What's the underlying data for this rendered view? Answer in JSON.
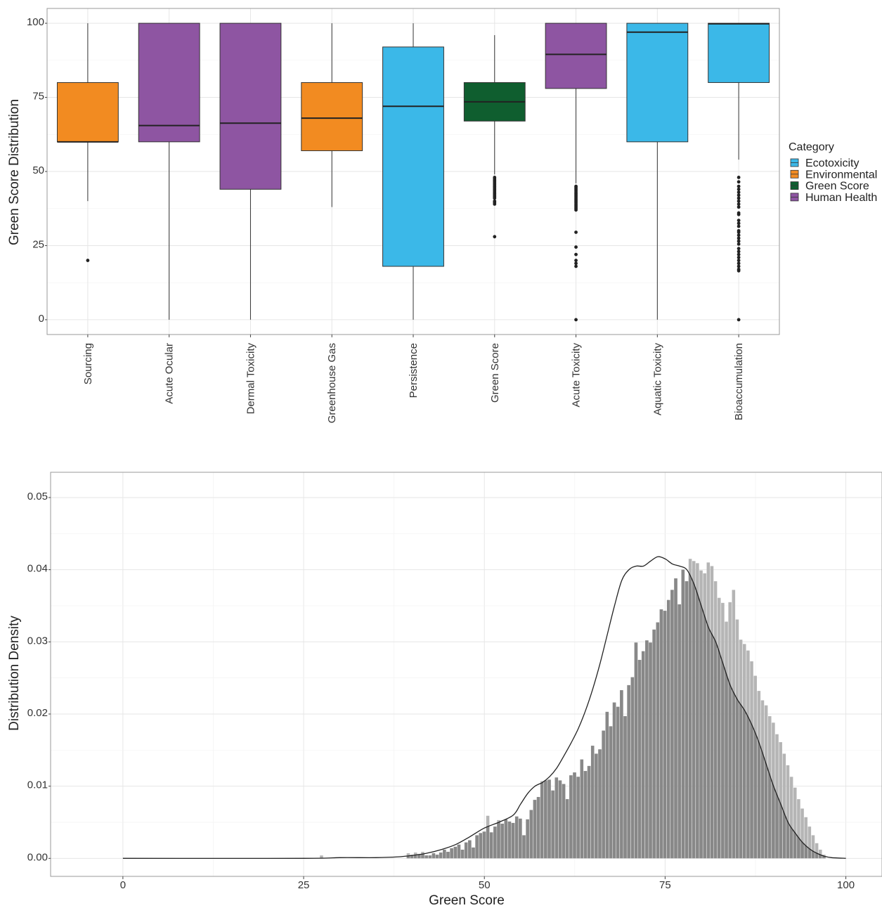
{
  "chart_data": [
    {
      "type": "boxplot",
      "ylabel": "Green Score Distribution",
      "xlabel": "",
      "ylim": [
        -5,
        105
      ],
      "y_ticks": [
        "0",
        "25",
        "50",
        "75",
        "100"
      ],
      "grid": true,
      "legend": {
        "title": "Category",
        "placement": "right",
        "entries": [
          {
            "label": "Ecotoxicity",
            "color": "#3BB8E8"
          },
          {
            "label": "Environmental",
            "color": "#F28B21"
          },
          {
            "label": "Green Score",
            "color": "#0F5E2F"
          },
          {
            "label": "Human Health",
            "color": "#8E55A2"
          }
        ]
      },
      "categories": [
        "Sourcing",
        "Acute Ocular",
        "Dermal Toxicity",
        "Greenhouse Gas",
        "Persistence",
        "Green Score",
        "Acute Toxicity",
        "Aquatic Toxicity",
        "Bioaccumulation"
      ],
      "boxes": [
        {
          "label": "Sourcing",
          "group": "Environmental",
          "min": 40,
          "q1": 60,
          "median": 60,
          "q3": 80,
          "max": 100,
          "outliers": [
            20
          ]
        },
        {
          "label": "Acute Ocular",
          "group": "Human Health",
          "min": 0,
          "q1": 60,
          "median": 65.5,
          "q3": 100,
          "max": 100,
          "outliers": []
        },
        {
          "label": "Dermal Toxicity",
          "group": "Human Health",
          "min": 0,
          "q1": 44,
          "median": 66.3,
          "q3": 100,
          "max": 100,
          "outliers": []
        },
        {
          "label": "Greenhouse Gas",
          "group": "Environmental",
          "min": 38,
          "q1": 57,
          "median": 68,
          "q3": 80,
          "max": 100,
          "outliers": []
        },
        {
          "label": "Persistence",
          "group": "Ecotoxicity",
          "min": 0,
          "q1": 18,
          "median": 72,
          "q3": 92,
          "max": 100,
          "outliers": []
        },
        {
          "label": "Green Score",
          "group": "Green Score",
          "min": 49,
          "q1": 67,
          "median": 73.5,
          "q3": 80,
          "max": 96,
          "outliers": [
            48,
            47.5,
            47,
            46.5,
            46,
            45.5,
            45,
            44.5,
            44,
            43.5,
            43,
            42.5,
            42,
            41.5,
            41,
            40,
            39.5,
            39,
            28
          ]
        },
        {
          "label": "Acute Toxicity",
          "group": "Human Health",
          "min": 46,
          "q1": 78,
          "median": 89.5,
          "q3": 100,
          "max": 100,
          "outliers": [
            45,
            44.5,
            44,
            43.5,
            43,
            42.5,
            42,
            41.5,
            41,
            40.5,
            40,
            39.5,
            39,
            38.5,
            38,
            37.5,
            37,
            29.5,
            24.5,
            22,
            20,
            19,
            18,
            0
          ]
        },
        {
          "label": "Aquatic Toxicity",
          "group": "Ecotoxicity",
          "min": 0,
          "q1": 60,
          "median": 97,
          "q3": 100,
          "max": 100,
          "outliers": []
        },
        {
          "label": "Bioaccumulation",
          "group": "Ecotoxicity",
          "min": 54,
          "q1": 80,
          "median": 99.8,
          "q3": 100,
          "max": 100,
          "outliers": [
            48,
            46.5,
            45,
            44,
            43,
            42,
            41,
            40,
            39,
            38,
            36,
            35.5,
            33.5,
            32.5,
            31.5,
            30,
            29.5,
            28.5,
            27.5,
            26.5,
            25.5,
            24,
            23,
            22,
            21,
            20,
            19,
            18,
            17,
            16.5,
            0
          ]
        }
      ]
    },
    {
      "type": "histogram",
      "xlabel": "Green Score",
      "ylabel": "Distribution Density",
      "xlim": [
        -10,
        105
      ],
      "ylim": [
        -0.0025,
        0.0535
      ],
      "x_ticks": [
        "0",
        "25",
        "50",
        "75",
        "100"
      ],
      "y_ticks": [
        "0.00",
        "0.01",
        "0.02",
        "0.03",
        "0.04",
        "0.05"
      ],
      "grid": true,
      "bar_color": "#888888",
      "bar_highlight_color": "#B5B5B5",
      "density_line_color": "#222222",
      "bin_width": 0.5,
      "bins": [
        {
          "x": 27.5,
          "y": 0.0004
        },
        {
          "x": 39.5,
          "y": 0.0007
        },
        {
          "x": 40.0,
          "y": 0.0005
        },
        {
          "x": 40.5,
          "y": 0.0008
        },
        {
          "x": 41.0,
          "y": 0.0006
        },
        {
          "x": 41.5,
          "y": 0.0009
        },
        {
          "x": 42.0,
          "y": 0.0004
        },
        {
          "x": 42.5,
          "y": 0.0004
        },
        {
          "x": 43.0,
          "y": 0.0007
        },
        {
          "x": 43.5,
          "y": 0.0005
        },
        {
          "x": 44.0,
          "y": 0.0008
        },
        {
          "x": 44.5,
          "y": 0.0012
        },
        {
          "x": 45.0,
          "y": 0.0009
        },
        {
          "x": 45.5,
          "y": 0.0014
        },
        {
          "x": 46.0,
          "y": 0.0016
        },
        {
          "x": 46.5,
          "y": 0.0019
        },
        {
          "x": 47.0,
          "y": 0.0012
        },
        {
          "x": 47.5,
          "y": 0.0022
        },
        {
          "x": 48.0,
          "y": 0.0025
        },
        {
          "x": 48.5,
          "y": 0.0015
        },
        {
          "x": 49.0,
          "y": 0.0032
        },
        {
          "x": 49.5,
          "y": 0.0035
        },
        {
          "x": 50.0,
          "y": 0.0037
        },
        {
          "x": 50.5,
          "y": 0.0059
        },
        {
          "x": 51.0,
          "y": 0.0036
        },
        {
          "x": 51.5,
          "y": 0.0044
        },
        {
          "x": 52.0,
          "y": 0.0053
        },
        {
          "x": 52.5,
          "y": 0.0048
        },
        {
          "x": 53.0,
          "y": 0.0054
        },
        {
          "x": 53.5,
          "y": 0.0051
        },
        {
          "x": 54.0,
          "y": 0.0049
        },
        {
          "x": 54.5,
          "y": 0.0058
        },
        {
          "x": 55.0,
          "y": 0.0055
        },
        {
          "x": 55.5,
          "y": 0.0032
        },
        {
          "x": 56.0,
          "y": 0.0054
        },
        {
          "x": 56.5,
          "y": 0.0067
        },
        {
          "x": 57.0,
          "y": 0.0081
        },
        {
          "x": 57.5,
          "y": 0.0085
        },
        {
          "x": 58.0,
          "y": 0.0107
        },
        {
          "x": 58.5,
          "y": 0.0108
        },
        {
          "x": 59.0,
          "y": 0.0109
        },
        {
          "x": 59.5,
          "y": 0.0094
        },
        {
          "x": 60.0,
          "y": 0.0112
        },
        {
          "x": 60.5,
          "y": 0.0108
        },
        {
          "x": 61.0,
          "y": 0.0103
        },
        {
          "x": 61.5,
          "y": 0.0082
        },
        {
          "x": 62.0,
          "y": 0.0115
        },
        {
          "x": 62.5,
          "y": 0.0119
        },
        {
          "x": 63.0,
          "y": 0.0113
        },
        {
          "x": 63.5,
          "y": 0.0137
        },
        {
          "x": 64.0,
          "y": 0.0121
        },
        {
          "x": 64.5,
          "y": 0.0128
        },
        {
          "x": 65.0,
          "y": 0.0156
        },
        {
          "x": 65.5,
          "y": 0.0145
        },
        {
          "x": 66.0,
          "y": 0.0151
        },
        {
          "x": 66.5,
          "y": 0.0177
        },
        {
          "x": 67.0,
          "y": 0.0203
        },
        {
          "x": 67.5,
          "y": 0.0183
        },
        {
          "x": 68.0,
          "y": 0.0216
        },
        {
          "x": 68.5,
          "y": 0.021
        },
        {
          "x": 69.0,
          "y": 0.0233
        },
        {
          "x": 69.5,
          "y": 0.0197
        },
        {
          "x": 70.0,
          "y": 0.024
        },
        {
          "x": 70.5,
          "y": 0.0251
        },
        {
          "x": 71.0,
          "y": 0.0299
        },
        {
          "x": 71.5,
          "y": 0.0275
        },
        {
          "x": 72.0,
          "y": 0.0287
        },
        {
          "x": 72.5,
          "y": 0.0302
        },
        {
          "x": 73.0,
          "y": 0.0299
        },
        {
          "x": 73.5,
          "y": 0.0317
        },
        {
          "x": 74.0,
          "y": 0.0327
        },
        {
          "x": 74.5,
          "y": 0.0345
        },
        {
          "x": 75.0,
          "y": 0.0343
        },
        {
          "x": 75.5,
          "y": 0.0358
        },
        {
          "x": 76.0,
          "y": 0.0372
        },
        {
          "x": 76.5,
          "y": 0.0388
        },
        {
          "x": 77.0,
          "y": 0.0352
        },
        {
          "x": 77.5,
          "y": 0.04
        },
        {
          "x": 78.0,
          "y": 0.0384
        },
        {
          "x": 78.5,
          "y": 0.0415
        },
        {
          "x": 79.0,
          "y": 0.0412
        },
        {
          "x": 79.5,
          "y": 0.0409
        },
        {
          "x": 80.0,
          "y": 0.0399
        },
        {
          "x": 80.5,
          "y": 0.0395
        },
        {
          "x": 81.0,
          "y": 0.041
        },
        {
          "x": 81.5,
          "y": 0.0405
        },
        {
          "x": 82.0,
          "y": 0.0384
        },
        {
          "x": 82.5,
          "y": 0.0361
        },
        {
          "x": 83.0,
          "y": 0.0354
        },
        {
          "x": 83.5,
          "y": 0.0328
        },
        {
          "x": 84.0,
          "y": 0.0355
        },
        {
          "x": 84.5,
          "y": 0.0372
        },
        {
          "x": 85.0,
          "y": 0.0331
        },
        {
          "x": 85.5,
          "y": 0.0303
        },
        {
          "x": 86.0,
          "y": 0.0297
        },
        {
          "x": 86.5,
          "y": 0.0288
        },
        {
          "x": 87.0,
          "y": 0.0273
        },
        {
          "x": 87.5,
          "y": 0.0253
        },
        {
          "x": 88.0,
          "y": 0.0232
        },
        {
          "x": 88.5,
          "y": 0.0219
        },
        {
          "x": 89.0,
          "y": 0.0212
        },
        {
          "x": 89.5,
          "y": 0.0197
        },
        {
          "x": 90.0,
          "y": 0.0188
        },
        {
          "x": 90.5,
          "y": 0.0172
        },
        {
          "x": 91.0,
          "y": 0.0161
        },
        {
          "x": 91.5,
          "y": 0.0145
        },
        {
          "x": 92.0,
          "y": 0.0129
        },
        {
          "x": 92.5,
          "y": 0.0113
        },
        {
          "x": 93.0,
          "y": 0.0098
        },
        {
          "x": 93.5,
          "y": 0.0082
        },
        {
          "x": 94.0,
          "y": 0.0069
        },
        {
          "x": 94.5,
          "y": 0.0057
        },
        {
          "x": 95.0,
          "y": 0.0044
        },
        {
          "x": 95.5,
          "y": 0.0032
        },
        {
          "x": 96.0,
          "y": 0.0021
        },
        {
          "x": 96.5,
          "y": 0.0012
        },
        {
          "x": 97.0,
          "y": 0.0005
        }
      ],
      "density": {
        "x": [
          0,
          25,
          30,
          35,
          38,
          40,
          42,
          44,
          46,
          48,
          50,
          52,
          54,
          55,
          56,
          57,
          58,
          59,
          60,
          61,
          62,
          63,
          64,
          65,
          66,
          67,
          68,
          69,
          70,
          71,
          72,
          73,
          74,
          75,
          76,
          77,
          78,
          79,
          80,
          81,
          82,
          83,
          84,
          85,
          86,
          87,
          88,
          89,
          90,
          91,
          92,
          93,
          94,
          95,
          96,
          97,
          98,
          100
        ],
        "y": [
          0,
          0,
          0.0001,
          0.0001,
          0.0002,
          0.0004,
          0.0007,
          0.0012,
          0.0019,
          0.003,
          0.0042,
          0.005,
          0.006,
          0.0075,
          0.009,
          0.01,
          0.0105,
          0.0113,
          0.0125,
          0.0142,
          0.016,
          0.018,
          0.0205,
          0.0235,
          0.027,
          0.031,
          0.035,
          0.0385,
          0.04,
          0.0405,
          0.0405,
          0.0412,
          0.0418,
          0.0415,
          0.0408,
          0.0405,
          0.04,
          0.038,
          0.035,
          0.032,
          0.03,
          0.027,
          0.024,
          0.022,
          0.0205,
          0.0185,
          0.016,
          0.013,
          0.01,
          0.0075,
          0.005,
          0.0035,
          0.0022,
          0.0013,
          0.0007,
          0.0003,
          0.0001,
          0
        ]
      }
    }
  ]
}
